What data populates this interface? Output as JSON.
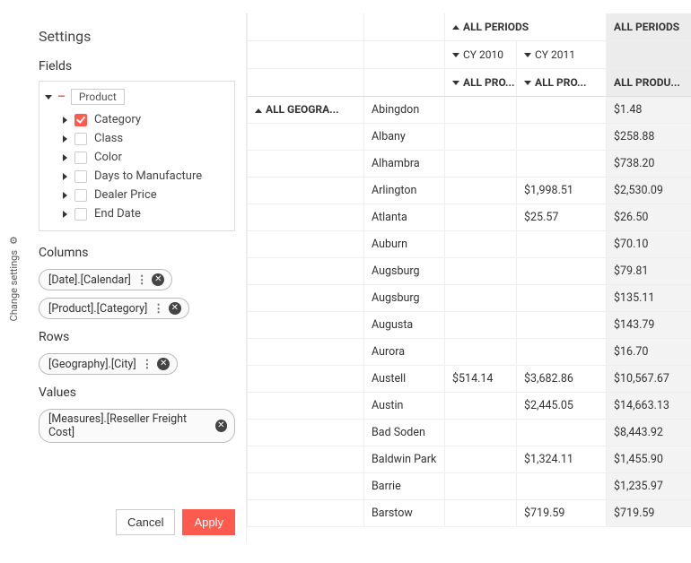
{
  "sideTab": {
    "label": "Change settings"
  },
  "settings": {
    "title": "Settings",
    "fieldsLabel": "Fields",
    "root": "Product",
    "items": [
      {
        "label": "Category",
        "checked": true
      },
      {
        "label": "Class",
        "checked": false
      },
      {
        "label": "Color",
        "checked": false
      },
      {
        "label": "Days to Manufacture",
        "checked": false
      },
      {
        "label": "Dealer Price",
        "checked": false
      },
      {
        "label": "End Date",
        "checked": false
      }
    ],
    "columnsLabel": "Columns",
    "columns": [
      {
        "label": "[Date].[Calendar]"
      },
      {
        "label": "[Product].[Category]"
      }
    ],
    "rowsLabel": "Rows",
    "rows": [
      {
        "label": "[Geography].[City]"
      }
    ],
    "valuesLabel": "Values",
    "values": [
      {
        "label": "[Measures].[Reseller Freight Cost]"
      }
    ],
    "cancel": "Cancel",
    "apply": "Apply"
  },
  "grid": {
    "rowGroupHeader": "ALL GEOGRA...",
    "colHeaderTop": {
      "c1": "ALL PERIODS",
      "c2": "ALL PERIODS"
    },
    "colHeaderMid": {
      "c1": "CY 2010",
      "c2": "CY 2011"
    },
    "colHeaderBot": {
      "c1": "ALL PRO...",
      "c2": "ALL PRO...",
      "c3": "ALL PRODU..."
    },
    "rows": [
      {
        "city": "Abingdon",
        "v2010": "",
        "v2011": "",
        "total": "$1.48"
      },
      {
        "city": "Albany",
        "v2010": "",
        "v2011": "",
        "total": "$258.88"
      },
      {
        "city": "Alhambra",
        "v2010": "",
        "v2011": "",
        "total": "$738.20"
      },
      {
        "city": "Arlington",
        "v2010": "",
        "v2011": "$1,998.51",
        "total": "$2,530.09"
      },
      {
        "city": "Atlanta",
        "v2010": "",
        "v2011": "$25.57",
        "total": "$26.50"
      },
      {
        "city": "Auburn",
        "v2010": "",
        "v2011": "",
        "total": "$70.10"
      },
      {
        "city": "Augsburg",
        "v2010": "",
        "v2011": "",
        "total": "$79.81"
      },
      {
        "city": "Augsburg",
        "v2010": "",
        "v2011": "",
        "total": "$135.11"
      },
      {
        "city": "Augusta",
        "v2010": "",
        "v2011": "",
        "total": "$143.79"
      },
      {
        "city": "Aurora",
        "v2010": "",
        "v2011": "",
        "total": "$16.70"
      },
      {
        "city": "Austell",
        "v2010": "$514.14",
        "v2011": "$3,682.86",
        "total": "$10,567.67"
      },
      {
        "city": "Austin",
        "v2010": "",
        "v2011": "$2,445.05",
        "total": "$14,663.13"
      },
      {
        "city": "Bad Soden",
        "v2010": "",
        "v2011": "",
        "total": "$8,443.92"
      },
      {
        "city": "Baldwin Park",
        "v2010": "",
        "v2011": "$1,324.11",
        "total": "$1,455.90"
      },
      {
        "city": "Barrie",
        "v2010": "",
        "v2011": "",
        "total": "$1,235.97"
      },
      {
        "city": "Barstow",
        "v2010": "",
        "v2011": "$719.59",
        "total": "$719.59"
      }
    ]
  },
  "colors": {
    "accent": "#ff5a4e",
    "shaded": "#ececec"
  }
}
